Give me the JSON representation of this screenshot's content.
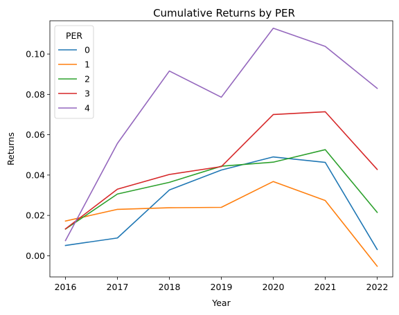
{
  "chart_data": {
    "type": "line",
    "title": "Cumulative Returns by PER",
    "xlabel": "Year",
    "ylabel": "Returns",
    "x": [
      2016,
      2017,
      2018,
      2019,
      2020,
      2021,
      2022
    ],
    "x_tick_labels": [
      "2016",
      "2017",
      "2018",
      "2019",
      "2020",
      "2021",
      "2022"
    ],
    "y_ticks": [
      0.0,
      0.02,
      0.04,
      0.06,
      0.08,
      0.1
    ],
    "y_tick_labels": [
      "0.00",
      "0.02",
      "0.04",
      "0.06",
      "0.08",
      "0.10"
    ],
    "xlim": [
      2015.7,
      2022.3
    ],
    "ylim": [
      -0.0105,
      0.1165
    ],
    "grid": false,
    "legend": {
      "title": "PER",
      "placement": "top-left"
    },
    "series": [
      {
        "name": "0",
        "color": "#1f77b4",
        "values": [
          0.0051,
          0.0088,
          0.0326,
          0.0425,
          0.049,
          0.0463,
          0.0031
        ]
      },
      {
        "name": "1",
        "color": "#ff7f0e",
        "values": [
          0.0172,
          0.023,
          0.0238,
          0.024,
          0.0368,
          0.0274,
          -0.0052
        ]
      },
      {
        "name": "2",
        "color": "#2ca02c",
        "values": [
          0.0132,
          0.0306,
          0.0364,
          0.0444,
          0.0464,
          0.0526,
          0.0215
        ]
      },
      {
        "name": "3",
        "color": "#d62728",
        "values": [
          0.0133,
          0.033,
          0.0403,
          0.0442,
          0.07,
          0.0714,
          0.0428
        ]
      },
      {
        "name": "4",
        "color": "#9467bd",
        "values": [
          0.0075,
          0.0557,
          0.0916,
          0.0786,
          0.1128,
          0.1038,
          0.083
        ]
      }
    ]
  }
}
